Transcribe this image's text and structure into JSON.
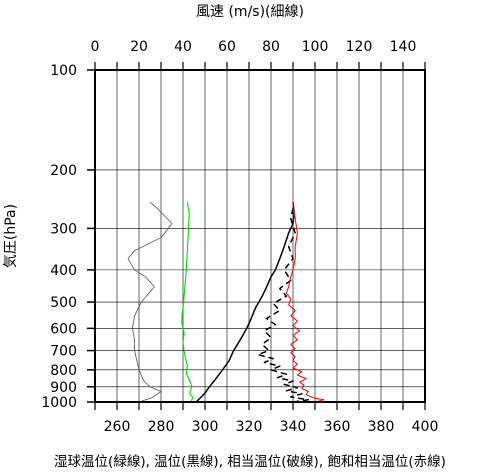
{
  "chart_data": {
    "type": "line",
    "title_top": "風速 (m/s)(細線)",
    "ylabel": "気圧(hPa)",
    "xlabel_bottom": "湿球温位(緑線), 温位(黒線), 相当温位(破線), 飽和相当温位(赤線)",
    "y_axis": {
      "scale": "log",
      "reversed": true,
      "ylim": [
        100,
        1000
      ],
      "tick_labels": [
        "100",
        "200",
        "300",
        "400",
        "500",
        "600",
        "700",
        "800",
        "900",
        "1000"
      ],
      "tick_values": [
        100,
        200,
        300,
        400,
        500,
        600,
        700,
        800,
        900,
        1000
      ]
    },
    "x_bottom": {
      "xlim": [
        250,
        400
      ],
      "tick_labels": [
        "260",
        "280",
        "300",
        "320",
        "340",
        "360",
        "380",
        "400"
      ],
      "tick_values": [
        260,
        280,
        300,
        320,
        340,
        360,
        380,
        400
      ],
      "minor_step": 10
    },
    "x_top": {
      "xlim": [
        0,
        150
      ],
      "tick_labels": [
        "0",
        "20",
        "40",
        "60",
        "80",
        "100",
        "120",
        "140"
      ],
      "tick_values": [
        0,
        20,
        40,
        60,
        80,
        100,
        120,
        140
      ]
    },
    "grid": true,
    "series": [
      {
        "key": "wind_speed",
        "axis": "top",
        "color": "#555555",
        "dash": "",
        "width": 0.8,
        "points": [
          [
            20,
            1000
          ],
          [
            26,
            970
          ],
          [
            30,
            930
          ],
          [
            25,
            900
          ],
          [
            22,
            860
          ],
          [
            20,
            800
          ],
          [
            19,
            750
          ],
          [
            18,
            700
          ],
          [
            18,
            650
          ],
          [
            17,
            600
          ],
          [
            18,
            550
          ],
          [
            21,
            500
          ],
          [
            27,
            450
          ],
          [
            23,
            420
          ],
          [
            18,
            400
          ],
          [
            15,
            370
          ],
          [
            18,
            350
          ],
          [
            30,
            320
          ],
          [
            35,
            290
          ],
          [
            28,
            260
          ],
          [
            25,
            250
          ]
        ]
      },
      {
        "key": "wet_bulb_potential_temperature",
        "axis": "bottom",
        "color": "#00dd00",
        "dash": "",
        "width": 1.1,
        "points": [
          [
            293.5,
            1000
          ],
          [
            294.5,
            970
          ],
          [
            293,
            940
          ],
          [
            294,
            900
          ],
          [
            293,
            860
          ],
          [
            291.5,
            820
          ],
          [
            292,
            780
          ],
          [
            291,
            730
          ],
          [
            290.5,
            700
          ],
          [
            290,
            660
          ],
          [
            290.5,
            620
          ],
          [
            289.5,
            580
          ],
          [
            289.5,
            550
          ],
          [
            290,
            520
          ],
          [
            290.5,
            480
          ],
          [
            291,
            440
          ],
          [
            291.5,
            400
          ],
          [
            292,
            350
          ],
          [
            292.5,
            300
          ],
          [
            292.8,
            270
          ],
          [
            292,
            250
          ]
        ]
      },
      {
        "key": "potential_temperature",
        "axis": "bottom",
        "color": "#000000",
        "dash": "",
        "width": 1.5,
        "points": [
          [
            296,
            1000
          ],
          [
            298,
            970
          ],
          [
            300,
            940
          ],
          [
            302,
            900
          ],
          [
            305,
            850
          ],
          [
            308,
            800
          ],
          [
            311,
            750
          ],
          [
            313,
            700
          ],
          [
            316,
            650
          ],
          [
            319,
            600
          ],
          [
            321,
            560
          ],
          [
            323,
            520
          ],
          [
            326,
            480
          ],
          [
            328,
            450
          ],
          [
            330,
            420
          ],
          [
            332,
            400
          ],
          [
            334,
            370
          ],
          [
            336,
            340
          ],
          [
            338,
            310
          ],
          [
            340,
            290
          ],
          [
            340.5,
            270
          ],
          [
            340,
            250
          ]
        ]
      },
      {
        "key": "equivalent_potential_temperature",
        "axis": "bottom",
        "color": "#000000",
        "dash": "6,4",
        "width": 1.5,
        "points": [
          [
            340,
            1000
          ],
          [
            347,
            985
          ],
          [
            339,
            965
          ],
          [
            344,
            945
          ],
          [
            337,
            925
          ],
          [
            342,
            905
          ],
          [
            336,
            885
          ],
          [
            340,
            865
          ],
          [
            333,
            845
          ],
          [
            337,
            825
          ],
          [
            330,
            800
          ],
          [
            334,
            780
          ],
          [
            327,
            760
          ],
          [
            331,
            740
          ],
          [
            324,
            720
          ],
          [
            329,
            700
          ],
          [
            326,
            670
          ],
          [
            330,
            640
          ],
          [
            327,
            610
          ],
          [
            332,
            585
          ],
          [
            328,
            560
          ],
          [
            334,
            530
          ],
          [
            331,
            505
          ],
          [
            337,
            480
          ],
          [
            334,
            455
          ],
          [
            339,
            430
          ],
          [
            336,
            400
          ],
          [
            340,
            370
          ],
          [
            338,
            340
          ],
          [
            341,
            310
          ],
          [
            339,
            280
          ],
          [
            340,
            260
          ]
        ]
      },
      {
        "key": "saturated_equivalent_potential_temperature",
        "axis": "bottom",
        "color": "#ff0000",
        "dash": "",
        "width": 1.0,
        "points": [
          [
            350,
            1000
          ],
          [
            354,
            985
          ],
          [
            349,
            970
          ],
          [
            346,
            950
          ],
          [
            347,
            930
          ],
          [
            344,
            910
          ],
          [
            345,
            890
          ],
          [
            343,
            870
          ],
          [
            346,
            850
          ],
          [
            342,
            830
          ],
          [
            344,
            810
          ],
          [
            340,
            790
          ],
          [
            342,
            770
          ],
          [
            340,
            750
          ],
          [
            341,
            730
          ],
          [
            339,
            710
          ],
          [
            341,
            690
          ],
          [
            339,
            670
          ],
          [
            342,
            650
          ],
          [
            340,
            630
          ],
          [
            343,
            610
          ],
          [
            340,
            590
          ],
          [
            342,
            570
          ],
          [
            339,
            550
          ],
          [
            341,
            530
          ],
          [
            338,
            510
          ],
          [
            339,
            490
          ],
          [
            337,
            470
          ],
          [
            338,
            450
          ],
          [
            339,
            420
          ],
          [
            340,
            400
          ],
          [
            341,
            370
          ],
          [
            341,
            340
          ],
          [
            342,
            310
          ],
          [
            341,
            280
          ],
          [
            340,
            260
          ],
          [
            340,
            250
          ]
        ]
      }
    ]
  }
}
